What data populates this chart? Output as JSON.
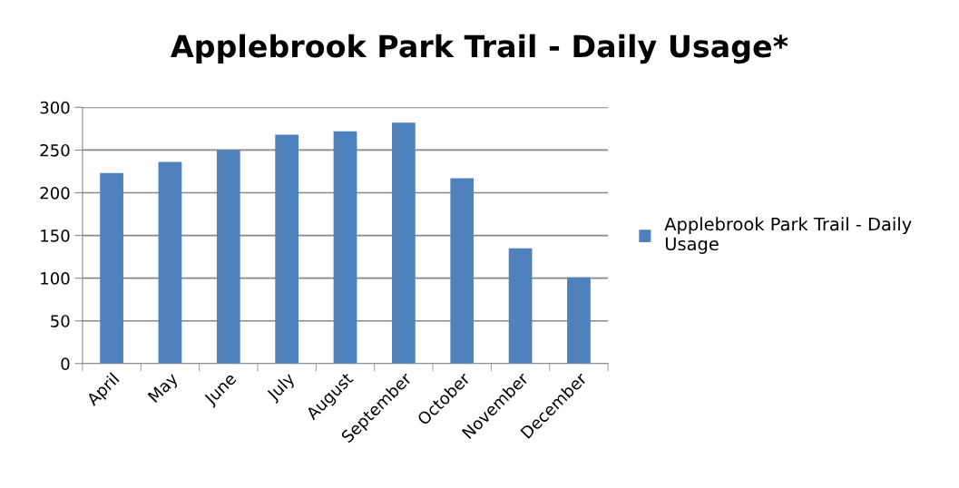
{
  "chart_data": {
    "type": "bar",
    "title": "Applebrook Park Trail - Daily Usage*",
    "categories": [
      "April",
      "May",
      "June",
      "July",
      "August",
      "September",
      "October",
      "November",
      "December"
    ],
    "series": [
      {
        "name": "Applebrook Park Trail - Daily Usage",
        "color": "#4f81bd",
        "values": [
          223,
          236,
          250,
          268,
          272,
          282,
          217,
          135,
          101
        ]
      }
    ],
    "ylim": [
      0,
      300
    ],
    "yticks": [
      0,
      50,
      100,
      150,
      200,
      250,
      300
    ],
    "grid": "y",
    "legend": "right"
  }
}
